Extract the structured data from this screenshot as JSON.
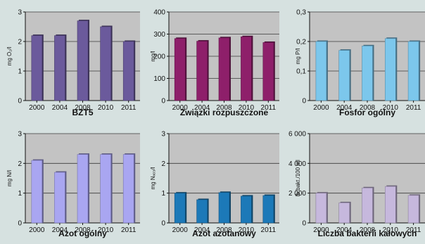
{
  "chart_data": [
    {
      "type": "bar",
      "title": "BZT5",
      "ylabel": "mg O₂/l",
      "categories": [
        "2000",
        "2004",
        "2008",
        "2010",
        "2011"
      ],
      "values": [
        2.2,
        2.2,
        2.7,
        2.5,
        2.0
      ],
      "ylim": [
        0,
        3
      ],
      "yticks": [
        "0",
        "1",
        "2",
        "3"
      ],
      "bar_color": "#6b5a9c",
      "grid": true
    },
    {
      "type": "bar",
      "title": "Związki rozpuszczone",
      "ylabel": "mg/l",
      "categories": [
        "2000",
        "2004",
        "2008",
        "2010",
        "2011"
      ],
      "values": [
        280,
        268,
        283,
        288,
        262
      ],
      "ylim": [
        0,
        400
      ],
      "yticks": [
        "0",
        "100",
        "200",
        "300",
        "400"
      ],
      "bar_color": "#8e1f6a",
      "grid": true
    },
    {
      "type": "bar",
      "title": "Fosfor ogólny",
      "ylabel": "mg P/l",
      "categories": [
        "2000",
        "2004",
        "2008",
        "2010",
        "2011"
      ],
      "values": [
        0.2,
        0.17,
        0.185,
        0.21,
        0.2
      ],
      "ylim": [
        0,
        0.3
      ],
      "yticks": [
        "0",
        "0,1",
        "0,2",
        "0,3"
      ],
      "bar_color": "#7cc7ec",
      "grid": true
    },
    {
      "type": "bar",
      "title": "Azot ogólny",
      "ylabel": "mg N/l",
      "categories": [
        "2000",
        "2004",
        "2008",
        "2010",
        "2011"
      ],
      "values": [
        2.1,
        1.7,
        2.3,
        2.3,
        2.3
      ],
      "ylim": [
        0,
        3
      ],
      "yticks": [
        "0",
        "1",
        "2",
        "3"
      ],
      "bar_color": "#a9a6f1",
      "grid": true
    },
    {
      "type": "bar",
      "title": "Azot azotanowy",
      "ylabel": "mg Nₓₒ₃/l",
      "categories": [
        "2000",
        "2004",
        "2008",
        "2010",
        "2011"
      ],
      "values": [
        1.0,
        0.78,
        1.02,
        0.9,
        0.92
      ],
      "ylim": [
        0,
        3
      ],
      "yticks": [
        "0",
        "1",
        "2",
        "3"
      ],
      "bar_color": "#1c79b8",
      "grid": true
    },
    {
      "type": "bar",
      "title": "Liczba bakterii kałowych",
      "ylabel": "Ib bakt./100 ml",
      "categories": [
        "2000",
        "2004",
        "2008",
        "2010",
        "2011"
      ],
      "values": [
        2000,
        1350,
        2350,
        2450,
        1850
      ],
      "ylim": [
        0,
        6000
      ],
      "yticks": [
        "0",
        "2 000",
        "4 000",
        "6 000"
      ],
      "bar_color": "#c6b8dd",
      "grid": true
    }
  ]
}
